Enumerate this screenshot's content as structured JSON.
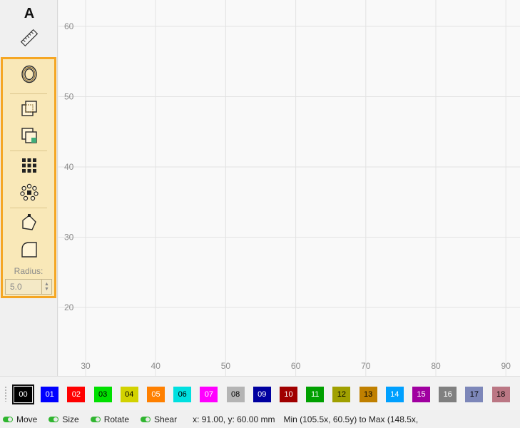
{
  "toolbar": {
    "tools": [
      {
        "id": "text-tool",
        "icon": "text-icon",
        "label": "A"
      },
      {
        "id": "measure-tool",
        "icon": "ruler-icon"
      },
      {
        "id": "offset-tool",
        "icon": "offset-icon"
      },
      {
        "id": "boolean-union-tool",
        "icon": "boolean-union-icon"
      },
      {
        "id": "weld-tool",
        "icon": "weld-icon"
      },
      {
        "id": "grid-array-tool",
        "icon": "grid-array-icon"
      },
      {
        "id": "circular-array-tool",
        "icon": "circular-array-icon"
      },
      {
        "id": "node-edit-tool",
        "icon": "node-edit-icon"
      },
      {
        "id": "corner-radius-tool",
        "icon": "corner-radius-icon"
      }
    ],
    "radius": {
      "label": "Radius:",
      "value": "5.0"
    },
    "accent_color": "#f5a623"
  },
  "canvas": {
    "x_ticks": [
      "30",
      "40",
      "50",
      "60",
      "70",
      "80",
      "90"
    ],
    "y_ticks": [
      "60",
      "50",
      "40",
      "30",
      "20"
    ],
    "grid_color": "#e3e3e3",
    "label_color": "#8a8a8a"
  },
  "palette": {
    "selected": "00",
    "swatches": [
      {
        "label": "00",
        "color": "#000000",
        "text": "#ffffff"
      },
      {
        "label": "01",
        "color": "#0000ff",
        "text": "#ffffff"
      },
      {
        "label": "02",
        "color": "#ff0000",
        "text": "#ffffff"
      },
      {
        "label": "03",
        "color": "#00e000",
        "text": "#000000"
      },
      {
        "label": "04",
        "color": "#d2d200",
        "text": "#000000"
      },
      {
        "label": "05",
        "color": "#ff8000",
        "text": "#ffffff"
      },
      {
        "label": "06",
        "color": "#00e0e0",
        "text": "#000000"
      },
      {
        "label": "07",
        "color": "#ff00ff",
        "text": "#ffffff"
      },
      {
        "label": "08",
        "color": "#b4b4b4",
        "text": "#000000"
      },
      {
        "label": "09",
        "color": "#0000a0",
        "text": "#ffffff"
      },
      {
        "label": "10",
        "color": "#a00000",
        "text": "#ffffff"
      },
      {
        "label": "11",
        "color": "#00a000",
        "text": "#ffffff"
      },
      {
        "label": "12",
        "color": "#a0a000",
        "text": "#000000"
      },
      {
        "label": "13",
        "color": "#c08000",
        "text": "#000000"
      },
      {
        "label": "14",
        "color": "#00a0ff",
        "text": "#ffffff"
      },
      {
        "label": "15",
        "color": "#a000a0",
        "text": "#ffffff"
      },
      {
        "label": "16",
        "color": "#808080",
        "text": "#ffffff"
      },
      {
        "label": "17",
        "color": "#7d87b9",
        "text": "#000000"
      },
      {
        "label": "18",
        "color": "#bb7784",
        "text": "#000000"
      }
    ]
  },
  "status": {
    "toggles": [
      {
        "label": "Move"
      },
      {
        "label": "Size"
      },
      {
        "label": "Rotate"
      },
      {
        "label": "Shear"
      }
    ],
    "coords": "x: 91.00, y: 60.00 mm",
    "bounds": "Min (105.5x, 60.5y) to Max (148.5x,"
  }
}
